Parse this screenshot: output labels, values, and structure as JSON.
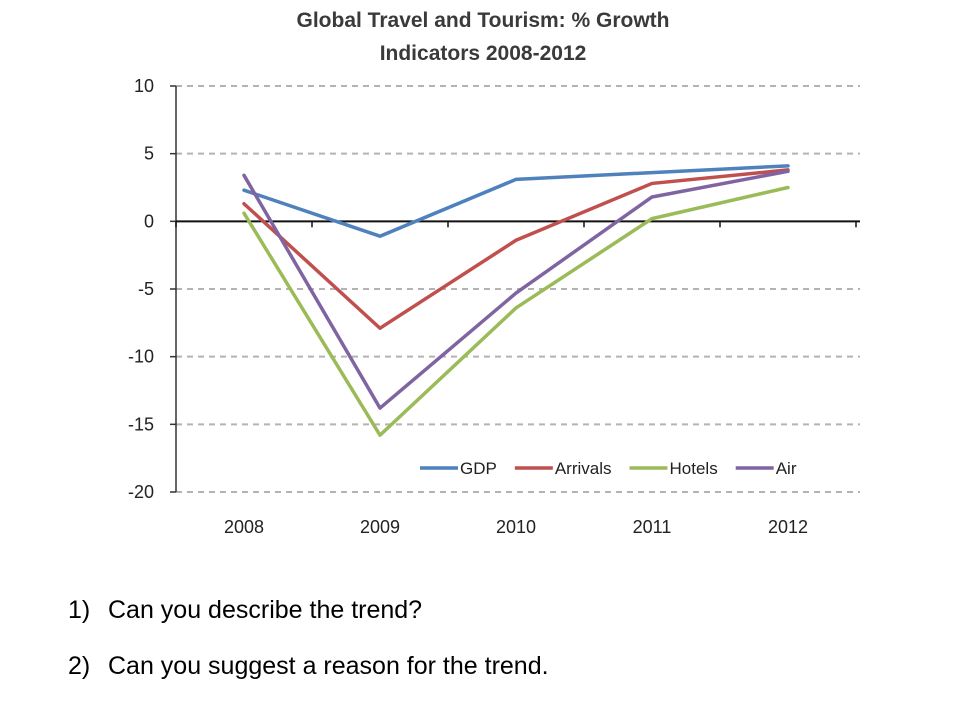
{
  "chart_data": {
    "type": "line",
    "title": [
      "Global Travel and Tourism: % Growth",
      "Indicators 2008-2012"
    ],
    "categories": [
      "2008",
      "2009",
      "2010",
      "2011",
      "2012"
    ],
    "ylim": [
      -20,
      10
    ],
    "yticks": [
      10,
      5,
      0,
      -5,
      -10,
      -15,
      -20
    ],
    "ytick_labels": [
      "10",
      "5",
      "0",
      "-5",
      "-10",
      "-15",
      "-20"
    ],
    "grid": true,
    "legend_position": "bottom-right",
    "series": [
      {
        "name": "GDP",
        "color": "#4f81bd",
        "values": [
          2.3,
          -1.1,
          3.1,
          3.6,
          4.1
        ]
      },
      {
        "name": "Arrivals",
        "color": "#c0504d",
        "values": [
          1.3,
          -7.9,
          -1.4,
          2.8,
          3.8
        ]
      },
      {
        "name": "Hotels",
        "color": "#9bbb59",
        "values": [
          0.6,
          -15.8,
          -6.4,
          0.2,
          2.5
        ]
      },
      {
        "name": "Air",
        "color": "#8064a2",
        "values": [
          3.4,
          -13.8,
          -5.3,
          1.8,
          3.7
        ]
      }
    ]
  },
  "questions": [
    {
      "number": "1)",
      "text": "Can you describe the trend?"
    },
    {
      "number": "2)",
      "text": "Can you suggest a reason for the trend."
    }
  ]
}
